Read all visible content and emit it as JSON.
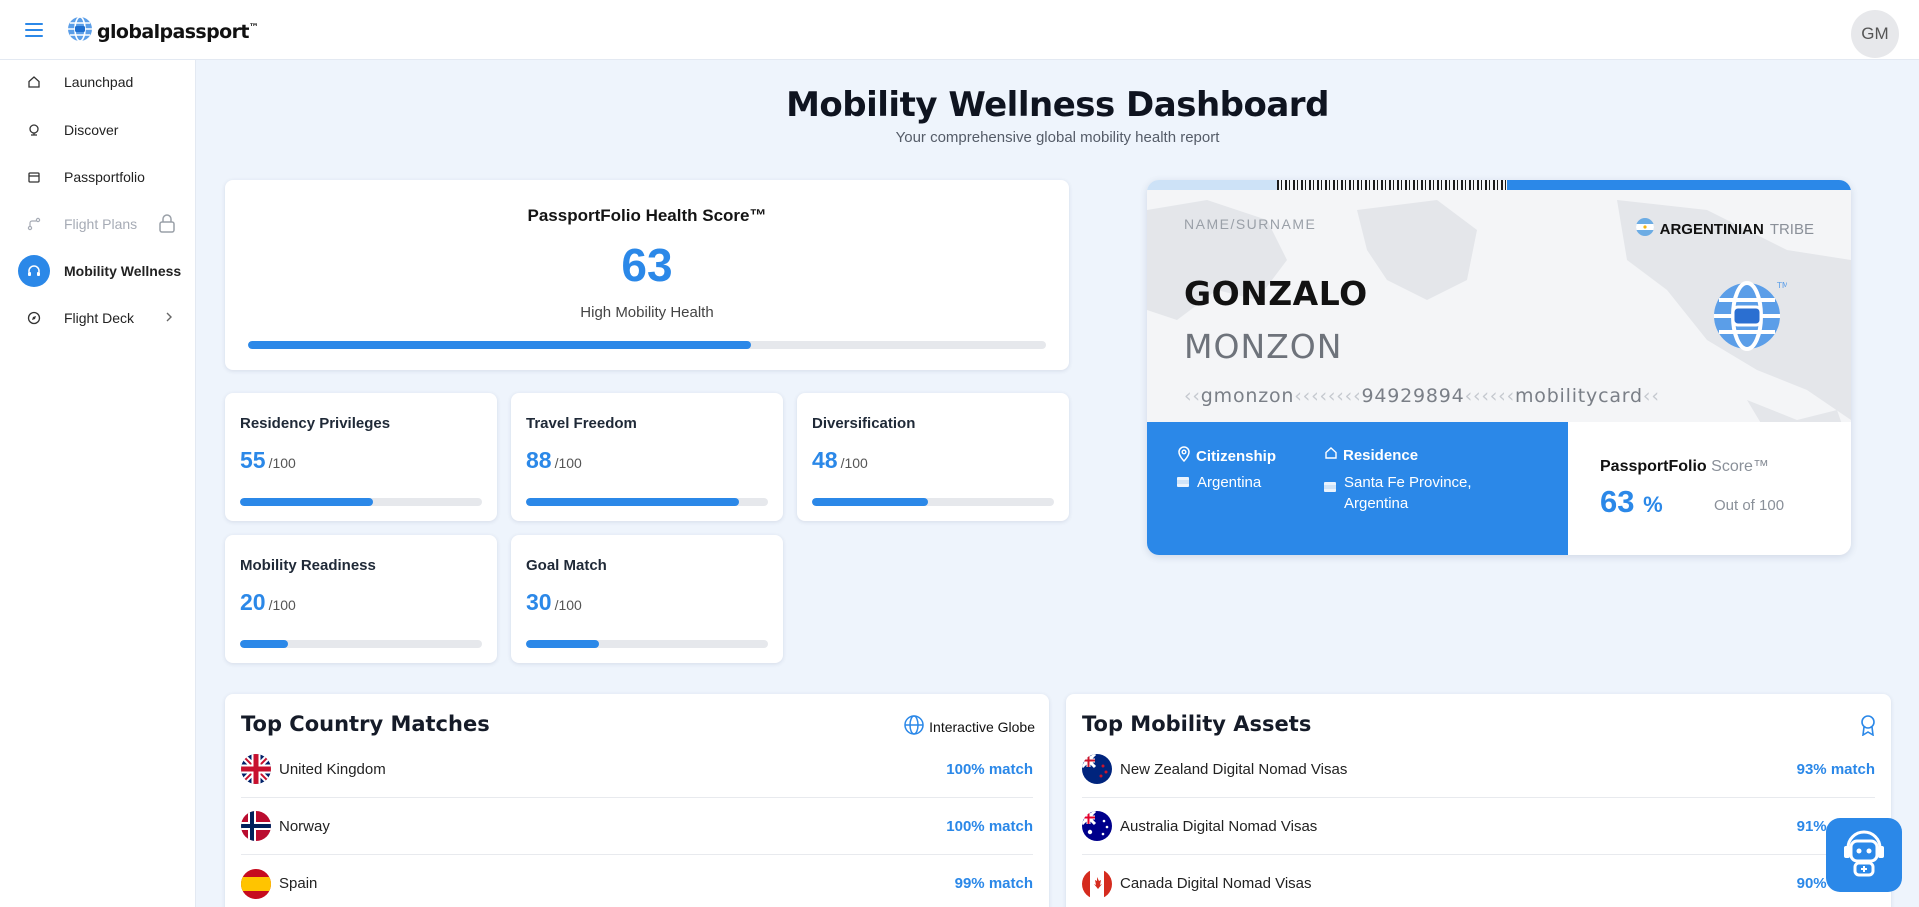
{
  "app": {
    "logo_text": "globalpassport",
    "logo_tm": "™",
    "avatar_initials": "GM"
  },
  "sidebar": {
    "items": [
      {
        "label": "Launchpad",
        "icon": "home-icon"
      },
      {
        "label": "Discover",
        "icon": "globe-stand-icon"
      },
      {
        "label": "Passportfolio",
        "icon": "folder-icon"
      },
      {
        "label": "Flight Plans",
        "icon": "route-icon",
        "state": "locked"
      },
      {
        "label": "Mobility Wellness",
        "icon": "headset-icon",
        "state": "active"
      },
      {
        "label": "Flight Deck",
        "icon": "compass-icon",
        "state": "expandable"
      }
    ]
  },
  "header": {
    "title": "Mobility Wellness Dashboard",
    "subtitle": "Your comprehensive global mobility health report"
  },
  "health": {
    "title": "PassportFolio Health Score™",
    "score": "63",
    "label": "High Mobility Health",
    "progress": 0.63
  },
  "metrics": [
    {
      "title": "Residency Privileges",
      "value": "55",
      "max": "/100",
      "progress": 0.55
    },
    {
      "title": "Travel Freedom",
      "value": "88",
      "max": "/100",
      "progress": 0.88
    },
    {
      "title": "Diversification",
      "value": "48",
      "max": "/100",
      "progress": 0.48
    },
    {
      "title": "Mobility Readiness",
      "value": "20",
      "max": "/100",
      "progress": 0.2
    },
    {
      "title": "Goal Match",
      "value": "30",
      "max": "/100",
      "progress": 0.3
    }
  ],
  "passport": {
    "name_label": "NAME/SURNAME",
    "tribe_bold": "ARGENTINIAN",
    "tribe_light": "TRIBE",
    "first_name": "GONZALO",
    "last_name": "MONZON",
    "mrz_lead": "‹‹",
    "mrz_user": "gmonzon",
    "mrz_sep1": "‹‹‹‹‹‹‹‹",
    "mrz_num": "94929894",
    "mrz_sep2": "‹‹‹‹‹‹",
    "mrz_tail": "mobilitycard",
    "mrz_end": "‹‹",
    "citizenship_label": "Citizenship",
    "citizenship_value": "Argentina",
    "residence_label": "Residence",
    "residence_line1": "Santa Fe Province,",
    "residence_line2": "Argentina",
    "score_title_bold": "PassportFolio",
    "score_title_light": "Score™",
    "score_value": "63",
    "score_pct": "%",
    "score_out": "Out of 100"
  },
  "countries": {
    "title": "Top Country Matches",
    "action": "Interactive Globe",
    "rows": [
      {
        "name": "United Kingdom",
        "match": "100% match",
        "flag": "uk"
      },
      {
        "name": "Norway",
        "match": "100% match",
        "flag": "norway"
      },
      {
        "name": "Spain",
        "match": "99% match",
        "flag": "spain"
      }
    ]
  },
  "assets": {
    "title": "Top Mobility Assets",
    "rows": [
      {
        "name": "New Zealand Digital Nomad Visas",
        "match": "93% match",
        "flag": "new-zealand"
      },
      {
        "name": "Australia Digital Nomad Visas",
        "match": "91% match",
        "flag": "australia"
      },
      {
        "name": "Canada Digital Nomad Visas",
        "match": "90% match",
        "flag": "canada"
      }
    ]
  },
  "colors": {
    "accent": "#2b88e8",
    "background": "#eef4fc"
  }
}
